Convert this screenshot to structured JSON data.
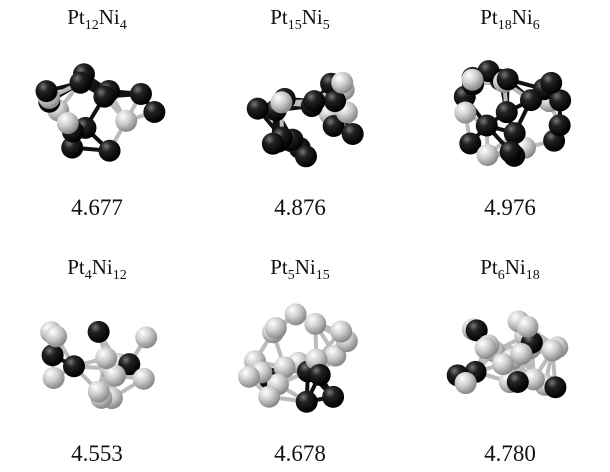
{
  "panels": [
    {
      "formula": {
        "el1": "Pt",
        "n1": "12",
        "el2": "Ni",
        "n2": "4"
      },
      "value": "4.677"
    },
    {
      "formula": {
        "el1": "Pt",
        "n1": "15",
        "el2": "Ni",
        "n2": "5"
      },
      "value": "4.876"
    },
    {
      "formula": {
        "el1": "Pt",
        "n1": "18",
        "el2": "Ni",
        "n2": "6"
      },
      "value": "4.976"
    },
    {
      "formula": {
        "el1": "Pt",
        "n1": "4",
        "el2": "Ni",
        "n2": "12"
      },
      "value": "4.553"
    },
    {
      "formula": {
        "el1": "Pt",
        "n1": "5",
        "el2": "Ni",
        "n2": "15"
      },
      "value": "4.678"
    },
    {
      "formula": {
        "el1": "Pt",
        "n1": "6",
        "el2": "Ni",
        "n2": "18"
      },
      "value": "4.780"
    }
  ]
}
